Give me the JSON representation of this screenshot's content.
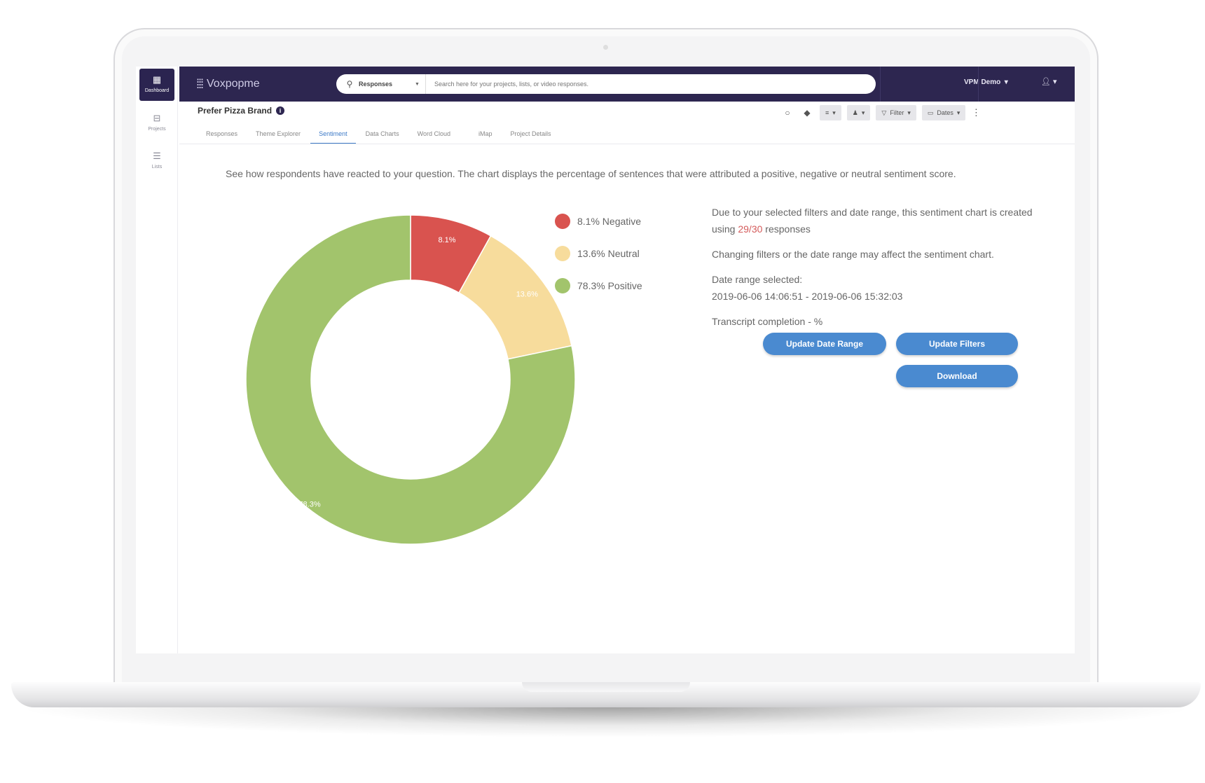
{
  "nav": {
    "items": [
      {
        "label": "Dashboard",
        "icon": "dashboard-icon"
      },
      {
        "label": "Projects",
        "icon": "projects-icon"
      },
      {
        "label": "Lists",
        "icon": "list-icon"
      }
    ]
  },
  "topbar": {
    "brand": "Voxpopme",
    "search_scope": "Responses",
    "search_placeholder": "Search here for your projects, lists, or video responses.",
    "account_label": "VPM Demo"
  },
  "project": {
    "title": "Prefer Pizza Brand",
    "tabs": [
      "Responses",
      "Theme Explorer",
      "Sentiment",
      "Data Charts",
      "Word Cloud",
      "iMap",
      "Project Details"
    ],
    "active_tab": "Sentiment",
    "toolbar": {
      "filter_label": "Filter",
      "dates_label": "Dates"
    }
  },
  "sentiment": {
    "description": "See how respondents have reacted to your question. The chart displays the percentage of sentences that were attributed a positive, negative or neutral sentiment score.",
    "info_prefix": "Due to your selected filters and date range, this sentiment chart is created using ",
    "info_count": "29/30",
    "info_suffix": " responses",
    "info_changing": "Changing filters or the date range may affect the sentiment chart.",
    "date_range_label": "Date range selected:",
    "date_range_value": "2019-06-06 14:06:51 - 2019-06-06 15:32:03",
    "transcript_completion": "Transcript completion - %",
    "buttons": {
      "update_date_range": "Update Date Range",
      "update_filters": "Update Filters",
      "download": "Download"
    }
  },
  "legend": [
    {
      "label": "8.1% Negative",
      "color": "#d9534f"
    },
    {
      "label": "13.6% Neutral",
      "color": "#f7dc9c"
    },
    {
      "label": "78.3% Positive",
      "color": "#a2c46c"
    }
  ],
  "chart_data": {
    "type": "pie",
    "categories": [
      "Negative",
      "Neutral",
      "Positive"
    ],
    "values": [
      8.1,
      13.6,
      78.3
    ],
    "labels": [
      "8.1%",
      "13.6%",
      "78.3%"
    ],
    "colors": [
      "#d9534f",
      "#f7dc9c",
      "#a2c46c"
    ],
    "donut": true
  }
}
